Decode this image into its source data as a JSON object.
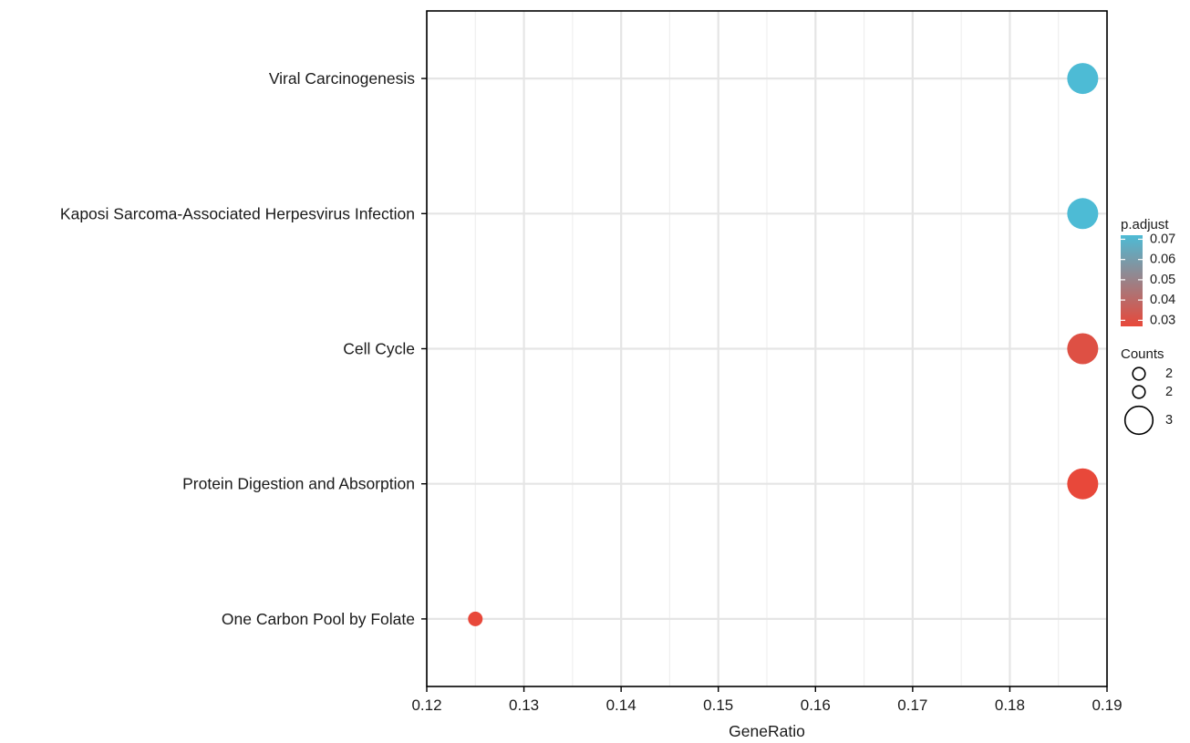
{
  "chart_data": {
    "type": "scatter",
    "title": "",
    "xlabel": "GeneRatio",
    "ylabel": "",
    "xlim": [
      0.12,
      0.19
    ],
    "x_ticks": [
      "0.12",
      "0.13",
      "0.14",
      "0.15",
      "0.16",
      "0.17",
      "0.18",
      "0.19"
    ],
    "grid": true,
    "categories": [
      "Viral Carcinogenesis",
      "Kaposi Sarcoma-Associated Herpesvirus Infection",
      "Cell Cycle",
      "Protein Digestion and Absorption",
      "One Carbon Pool by Folate"
    ],
    "points": [
      {
        "category": "Viral Carcinogenesis",
        "gene_ratio": 0.1875,
        "count": 3,
        "p_adjust": 0.072
      },
      {
        "category": "Kaposi Sarcoma-Associated Herpesvirus Infection",
        "gene_ratio": 0.1875,
        "count": 3,
        "p_adjust": 0.072
      },
      {
        "category": "Cell Cycle",
        "gene_ratio": 0.1875,
        "count": 3,
        "p_adjust": 0.03
      },
      {
        "category": "Protein Digestion and Absorption",
        "gene_ratio": 0.1875,
        "count": 3,
        "p_adjust": 0.027
      },
      {
        "category": "One Carbon Pool by Folate",
        "gene_ratio": 0.125,
        "count": 2,
        "p_adjust": 0.027
      }
    ],
    "color_legend": {
      "title": "p.adjust",
      "ticks": [
        "0.07",
        "0.06",
        "0.05",
        "0.04",
        "0.03"
      ],
      "range": [
        0.027,
        0.072
      ],
      "low_color": "#e8483a",
      "high_color": "#4dbbd5"
    },
    "size_legend": {
      "title": "Counts",
      "entries": [
        {
          "label": "2",
          "value": 2
        },
        {
          "label": "2",
          "value": 2
        },
        {
          "label": "3",
          "value": 3
        }
      ]
    },
    "legend_position": "right"
  }
}
